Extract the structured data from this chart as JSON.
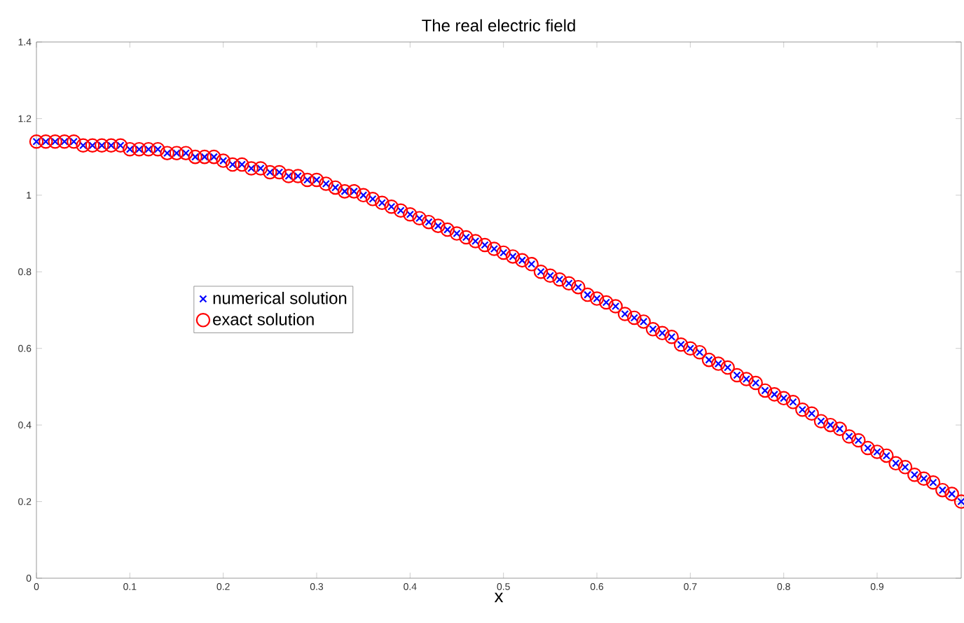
{
  "chart_data": {
    "type": "scatter",
    "title": "The real electric field",
    "xlabel": "x",
    "x": [
      0,
      0.01,
      0.02,
      0.03,
      0.04,
      0.05,
      0.06,
      0.07,
      0.08,
      0.09,
      0.1,
      0.11,
      0.12,
      0.13,
      0.14,
      0.15,
      0.16,
      0.17,
      0.18,
      0.19,
      0.2,
      0.21,
      0.22,
      0.23,
      0.24,
      0.25,
      0.26,
      0.27,
      0.28,
      0.29,
      0.3,
      0.31,
      0.32,
      0.33,
      0.34,
      0.35,
      0.36,
      0.37,
      0.38,
      0.39,
      0.4,
      0.41,
      0.42,
      0.43,
      0.44,
      0.45,
      0.46,
      0.47,
      0.48,
      0.49,
      0.5,
      0.51,
      0.52,
      0.53,
      0.54,
      0.55,
      0.56,
      0.57,
      0.58,
      0.59,
      0.6,
      0.61,
      0.62,
      0.63,
      0.64,
      0.65,
      0.66,
      0.67,
      0.68,
      0.69,
      0.7,
      0.71,
      0.72,
      0.73,
      0.74,
      0.75,
      0.76,
      0.77,
      0.78,
      0.79,
      0.8,
      0.81,
      0.82,
      0.83,
      0.84,
      0.85,
      0.86,
      0.87,
      0.88,
      0.89,
      0.9,
      0.91,
      0.92,
      0.93,
      0.94,
      0.95,
      0.96,
      0.97,
      0.98,
      0.99
    ],
    "series": [
      {
        "name": "numerical solution",
        "color": "#0000ff",
        "marker": "cross",
        "values": [
          1.14,
          1.14,
          1.14,
          1.14,
          1.14,
          1.13,
          1.13,
          1.13,
          1.13,
          1.13,
          1.12,
          1.12,
          1.12,
          1.12,
          1.11,
          1.11,
          1.11,
          1.1,
          1.1,
          1.1,
          1.09,
          1.08,
          1.08,
          1.07,
          1.07,
          1.06,
          1.06,
          1.05,
          1.05,
          1.04,
          1.04,
          1.03,
          1.02,
          1.01,
          1.01,
          1.0,
          0.99,
          0.98,
          0.97,
          0.96,
          0.95,
          0.94,
          0.93,
          0.92,
          0.91,
          0.9,
          0.89,
          0.88,
          0.87,
          0.86,
          0.85,
          0.84,
          0.83,
          0.82,
          0.8,
          0.79,
          0.78,
          0.77,
          0.76,
          0.74,
          0.73,
          0.72,
          0.71,
          0.69,
          0.68,
          0.67,
          0.65,
          0.64,
          0.63,
          0.61,
          0.6,
          0.59,
          0.57,
          0.56,
          0.55,
          0.53,
          0.52,
          0.51,
          0.49,
          0.48,
          0.47,
          0.46,
          0.44,
          0.43,
          0.41,
          0.4,
          0.39,
          0.37,
          0.36,
          0.34,
          0.33,
          0.32,
          0.3,
          0.29,
          0.27,
          0.26,
          0.25,
          0.23,
          0.22,
          0.2
        ]
      },
      {
        "name": "exact solution",
        "color": "#ff0000",
        "marker": "circle",
        "values": [
          1.14,
          1.14,
          1.14,
          1.14,
          1.14,
          1.13,
          1.13,
          1.13,
          1.13,
          1.13,
          1.12,
          1.12,
          1.12,
          1.12,
          1.11,
          1.11,
          1.11,
          1.1,
          1.1,
          1.1,
          1.09,
          1.08,
          1.08,
          1.07,
          1.07,
          1.06,
          1.06,
          1.05,
          1.05,
          1.04,
          1.04,
          1.03,
          1.02,
          1.01,
          1.01,
          1.0,
          0.99,
          0.98,
          0.97,
          0.96,
          0.95,
          0.94,
          0.93,
          0.92,
          0.91,
          0.9,
          0.89,
          0.88,
          0.87,
          0.86,
          0.85,
          0.84,
          0.83,
          0.82,
          0.8,
          0.79,
          0.78,
          0.77,
          0.76,
          0.74,
          0.73,
          0.72,
          0.71,
          0.69,
          0.68,
          0.67,
          0.65,
          0.64,
          0.63,
          0.61,
          0.6,
          0.59,
          0.57,
          0.56,
          0.55,
          0.53,
          0.52,
          0.51,
          0.49,
          0.48,
          0.47,
          0.46,
          0.44,
          0.43,
          0.41,
          0.4,
          0.39,
          0.37,
          0.36,
          0.34,
          0.33,
          0.32,
          0.3,
          0.29,
          0.27,
          0.26,
          0.25,
          0.23,
          0.22,
          0.2
        ]
      }
    ],
    "xlim": [
      0,
      0.99
    ],
    "xticks": [
      0,
      0.1,
      0.2,
      0.3,
      0.4,
      0.5,
      0.6,
      0.7,
      0.8,
      0.9
    ],
    "ylim": [
      0,
      1.4
    ],
    "yticks": [
      0,
      0.2,
      0.4,
      0.6,
      0.8,
      1,
      1.2,
      1.4
    ],
    "grid": false,
    "legend": "left"
  }
}
